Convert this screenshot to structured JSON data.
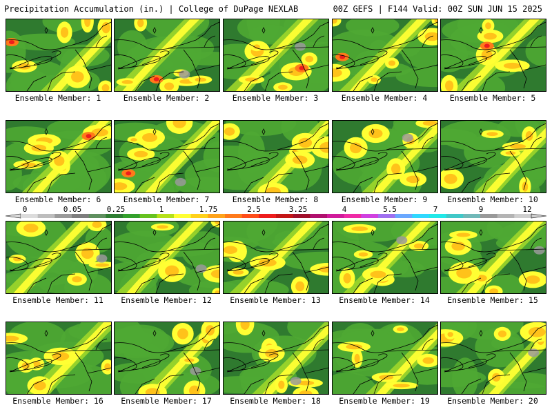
{
  "header": {
    "title": "Precipitation Accumulation (in.) | College of DuPage NEXLAB",
    "valid": "00Z GEFS | F144 Valid: 00Z SUN JUN 15 2025"
  },
  "colorbar": {
    "tick_labels": [
      "0",
      "0.05",
      "0.25",
      "1",
      "1.75",
      "2.5",
      "3.25",
      "4",
      "5.5",
      "7",
      "9",
      "12"
    ],
    "colors": [
      "#dcdcdc",
      "#bdbdbd",
      "#9a9a9a",
      "#7d7d7d",
      "#5f8f5f",
      "#2e7d32",
      "#33a02c",
      "#66c21f",
      "#b5e01a",
      "#ffff33",
      "#ffd11a",
      "#ffa31a",
      "#ff7a1a",
      "#ff4d1a",
      "#ee1c1c",
      "#c41616",
      "#a0102a",
      "#b0106e",
      "#d01a9a",
      "#ef2aa6",
      "#d040e0",
      "#a070f0",
      "#6aa8ff",
      "#30d8ff",
      "#20e8e8",
      "#40c8c8",
      "#70b8b8",
      "#999999",
      "#b4b4b4",
      "#cfcfcf"
    ]
  },
  "panels": [
    {
      "label": "Ensemble Member: 1"
    },
    {
      "label": "Ensemble Member: 2"
    },
    {
      "label": "Ensemble Member: 3"
    },
    {
      "label": "Ensemble Member: 4"
    },
    {
      "label": "Ensemble Member: 5"
    },
    {
      "label": "Ensemble Member: 6"
    },
    {
      "label": "Ensemble Member: 7"
    },
    {
      "label": "Ensemble Member: 8"
    },
    {
      "label": "Ensemble Member: 9"
    },
    {
      "label": "Ensemble Member: 10"
    },
    {
      "label": "Ensemble Member: 11"
    },
    {
      "label": "Ensemble Member: 12"
    },
    {
      "label": "Ensemble Member: 13"
    },
    {
      "label": "Ensemble Member: 14"
    },
    {
      "label": "Ensemble Member: 15"
    },
    {
      "label": "Ensemble Member: 16"
    },
    {
      "label": "Ensemble Member: 17"
    },
    {
      "label": "Ensemble Member: 18"
    },
    {
      "label": "Ensemble Member: 19"
    },
    {
      "label": "Ensemble Member: 20"
    }
  ]
}
